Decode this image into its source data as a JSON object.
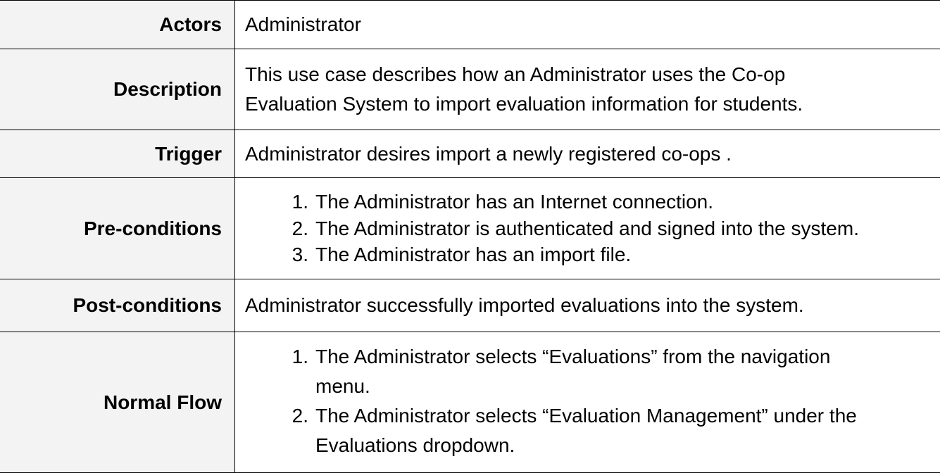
{
  "rows": {
    "actors": {
      "label": "Actors",
      "value": "Administrator"
    },
    "description": {
      "label": "Description",
      "value_line1": "This use case describes how an Administrator uses the Co-op",
      "value_line2": "Evaluation System to import evaluation information for students."
    },
    "trigger": {
      "label": "Trigger",
      "value": "Administrator desires import a newly registered co-ops ."
    },
    "preconditions": {
      "label": "Pre-conditions",
      "items": [
        {
          "num": "1.",
          "text": "The Administrator has an Internet connection."
        },
        {
          "num": "2.",
          "text": "The Administrator is authenticated and signed into the system."
        },
        {
          "num": "3.",
          "text": "The Administrator has an import file."
        }
      ]
    },
    "postconditions": {
      "label": "Post-conditions",
      "value": "Administrator successfully imported evaluations into the system."
    },
    "normal_flow": {
      "label": "Normal Flow",
      "items": [
        {
          "num": "1.",
          "line1": "The Administrator selects “Evaluations” from the navigation",
          "line2": "menu."
        },
        {
          "num": "2.",
          "line1": "The Administrator selects “Evaluation Management” under the",
          "line2": "Evaluations dropdown."
        }
      ]
    }
  }
}
